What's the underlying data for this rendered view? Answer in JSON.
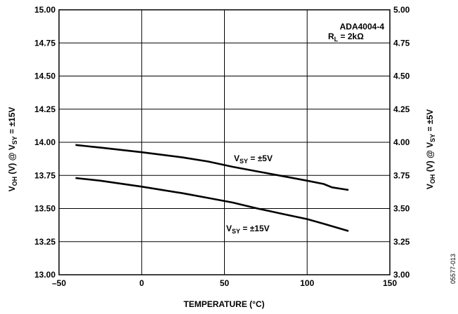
{
  "chart_data": {
    "type": "line",
    "xlabel": "TEMPERATURE (°C)",
    "ylabel_left": {
      "main": "V",
      "sub1": "OH",
      "mid": " (V) @ V",
      "sub2": "SY",
      "tail": " = ±15V"
    },
    "ylabel_right": {
      "main": "V",
      "sub1": "OH",
      "mid": " (V) @ V",
      "sub2": "SY",
      "tail": " = ±5V"
    },
    "xlim": [
      -50,
      150
    ],
    "ylim_left": [
      13.0,
      15.0
    ],
    "ylim_right": [
      3.0,
      5.0
    ],
    "x_ticks": [
      "–50",
      "0",
      "50",
      "100",
      "150"
    ],
    "y_ticks_left": [
      "13.00",
      "13.25",
      "13.50",
      "13.75",
      "14.00",
      "14.25",
      "14.50",
      "14.75",
      "15.00"
    ],
    "y_ticks_right": [
      "3.00",
      "3.25",
      "3.50",
      "3.75",
      "4.00",
      "4.25",
      "4.50",
      "4.75",
      "5.00"
    ],
    "grid": true,
    "annotation": {
      "line1": "ADA4004-4",
      "r_main": "R",
      "r_sub": "L",
      "r_tail": " = 2kΩ"
    },
    "series": [
      {
        "name": {
          "main": "V",
          "sub": "SY",
          "tail": " = ±5V"
        },
        "axis": "right",
        "x": [
          -40,
          -25,
          0,
          25,
          40,
          55,
          70,
          85,
          100,
          110,
          115,
          125
        ],
        "y": [
          3.98,
          3.96,
          3.925,
          3.885,
          3.855,
          3.815,
          3.78,
          3.745,
          3.71,
          3.685,
          3.66,
          3.64
        ]
      },
      {
        "name": {
          "main": "V",
          "sub": "SY",
          "tail": " = ±15V"
        },
        "axis": "left",
        "x": [
          -40,
          -25,
          0,
          25,
          40,
          55,
          70,
          85,
          100,
          110,
          125
        ],
        "y": [
          13.73,
          13.71,
          13.665,
          13.615,
          13.58,
          13.545,
          13.5,
          13.46,
          13.42,
          13.385,
          13.33
        ]
      }
    ],
    "figure_id": "05577-013"
  }
}
